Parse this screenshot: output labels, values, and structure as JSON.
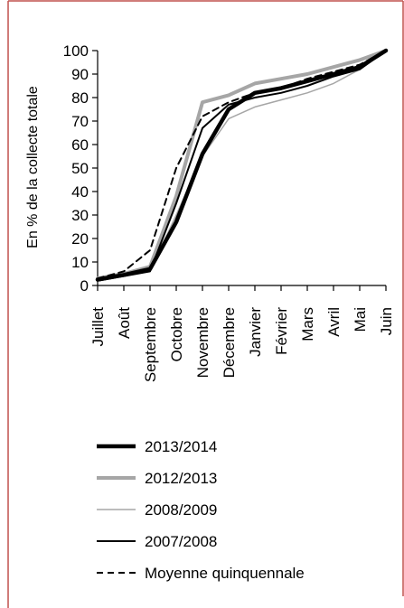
{
  "colors": {
    "frame": "#c0504d",
    "axis": "#000000",
    "series_2013_2014": "#000000",
    "series_2012_2013": "#a6a6a6",
    "series_2008_2009": "#a6a6a6",
    "series_2007_2008": "#000000",
    "series_moyenne": "#000000"
  },
  "chart_data": {
    "type": "line",
    "ylabel": "En % de la collecte totale",
    "xlabel": "",
    "ylim": [
      0,
      100
    ],
    "yticks": [
      0,
      10,
      20,
      30,
      40,
      50,
      60,
      70,
      80,
      90,
      100
    ],
    "categories": [
      "Juillet",
      "Août",
      "Septembre",
      "Octobre",
      "Novembre",
      "Décembre",
      "Janvier",
      "Février",
      "Mars",
      "Avril",
      "Mai",
      "Juin"
    ],
    "series": [
      {
        "name": "2013/2014",
        "style": "thick-black",
        "values": [
          2.5,
          4.5,
          7,
          27,
          56,
          75,
          82,
          84,
          87,
          90,
          93,
          100
        ]
      },
      {
        "name": "2012/2013",
        "style": "thick-gray",
        "values": [
          3,
          5,
          8,
          38,
          78,
          81,
          86,
          88,
          90,
          93,
          96,
          100
        ]
      },
      {
        "name": "2008/2009",
        "style": "thin-gray",
        "values": [
          2,
          4,
          6,
          30,
          55,
          71,
          76,
          79,
          82,
          86,
          92,
          100
        ]
      },
      {
        "name": "2007/2008",
        "style": "thin-black",
        "values": [
          2,
          4,
          6,
          35,
          67,
          77,
          80,
          82,
          85,
          89,
          92,
          100
        ]
      },
      {
        "name": "Moyenne quinquennale",
        "style": "dashed-black",
        "values": [
          3,
          6,
          15,
          50,
          72,
          78,
          82,
          84,
          88,
          91,
          94,
          100
        ]
      }
    ],
    "legend": [
      "2013/2014",
      "2012/2013",
      "2008/2009",
      "2007/2008",
      "Moyenne quinquennale"
    ],
    "legend_position": "bottom",
    "grid": false
  }
}
